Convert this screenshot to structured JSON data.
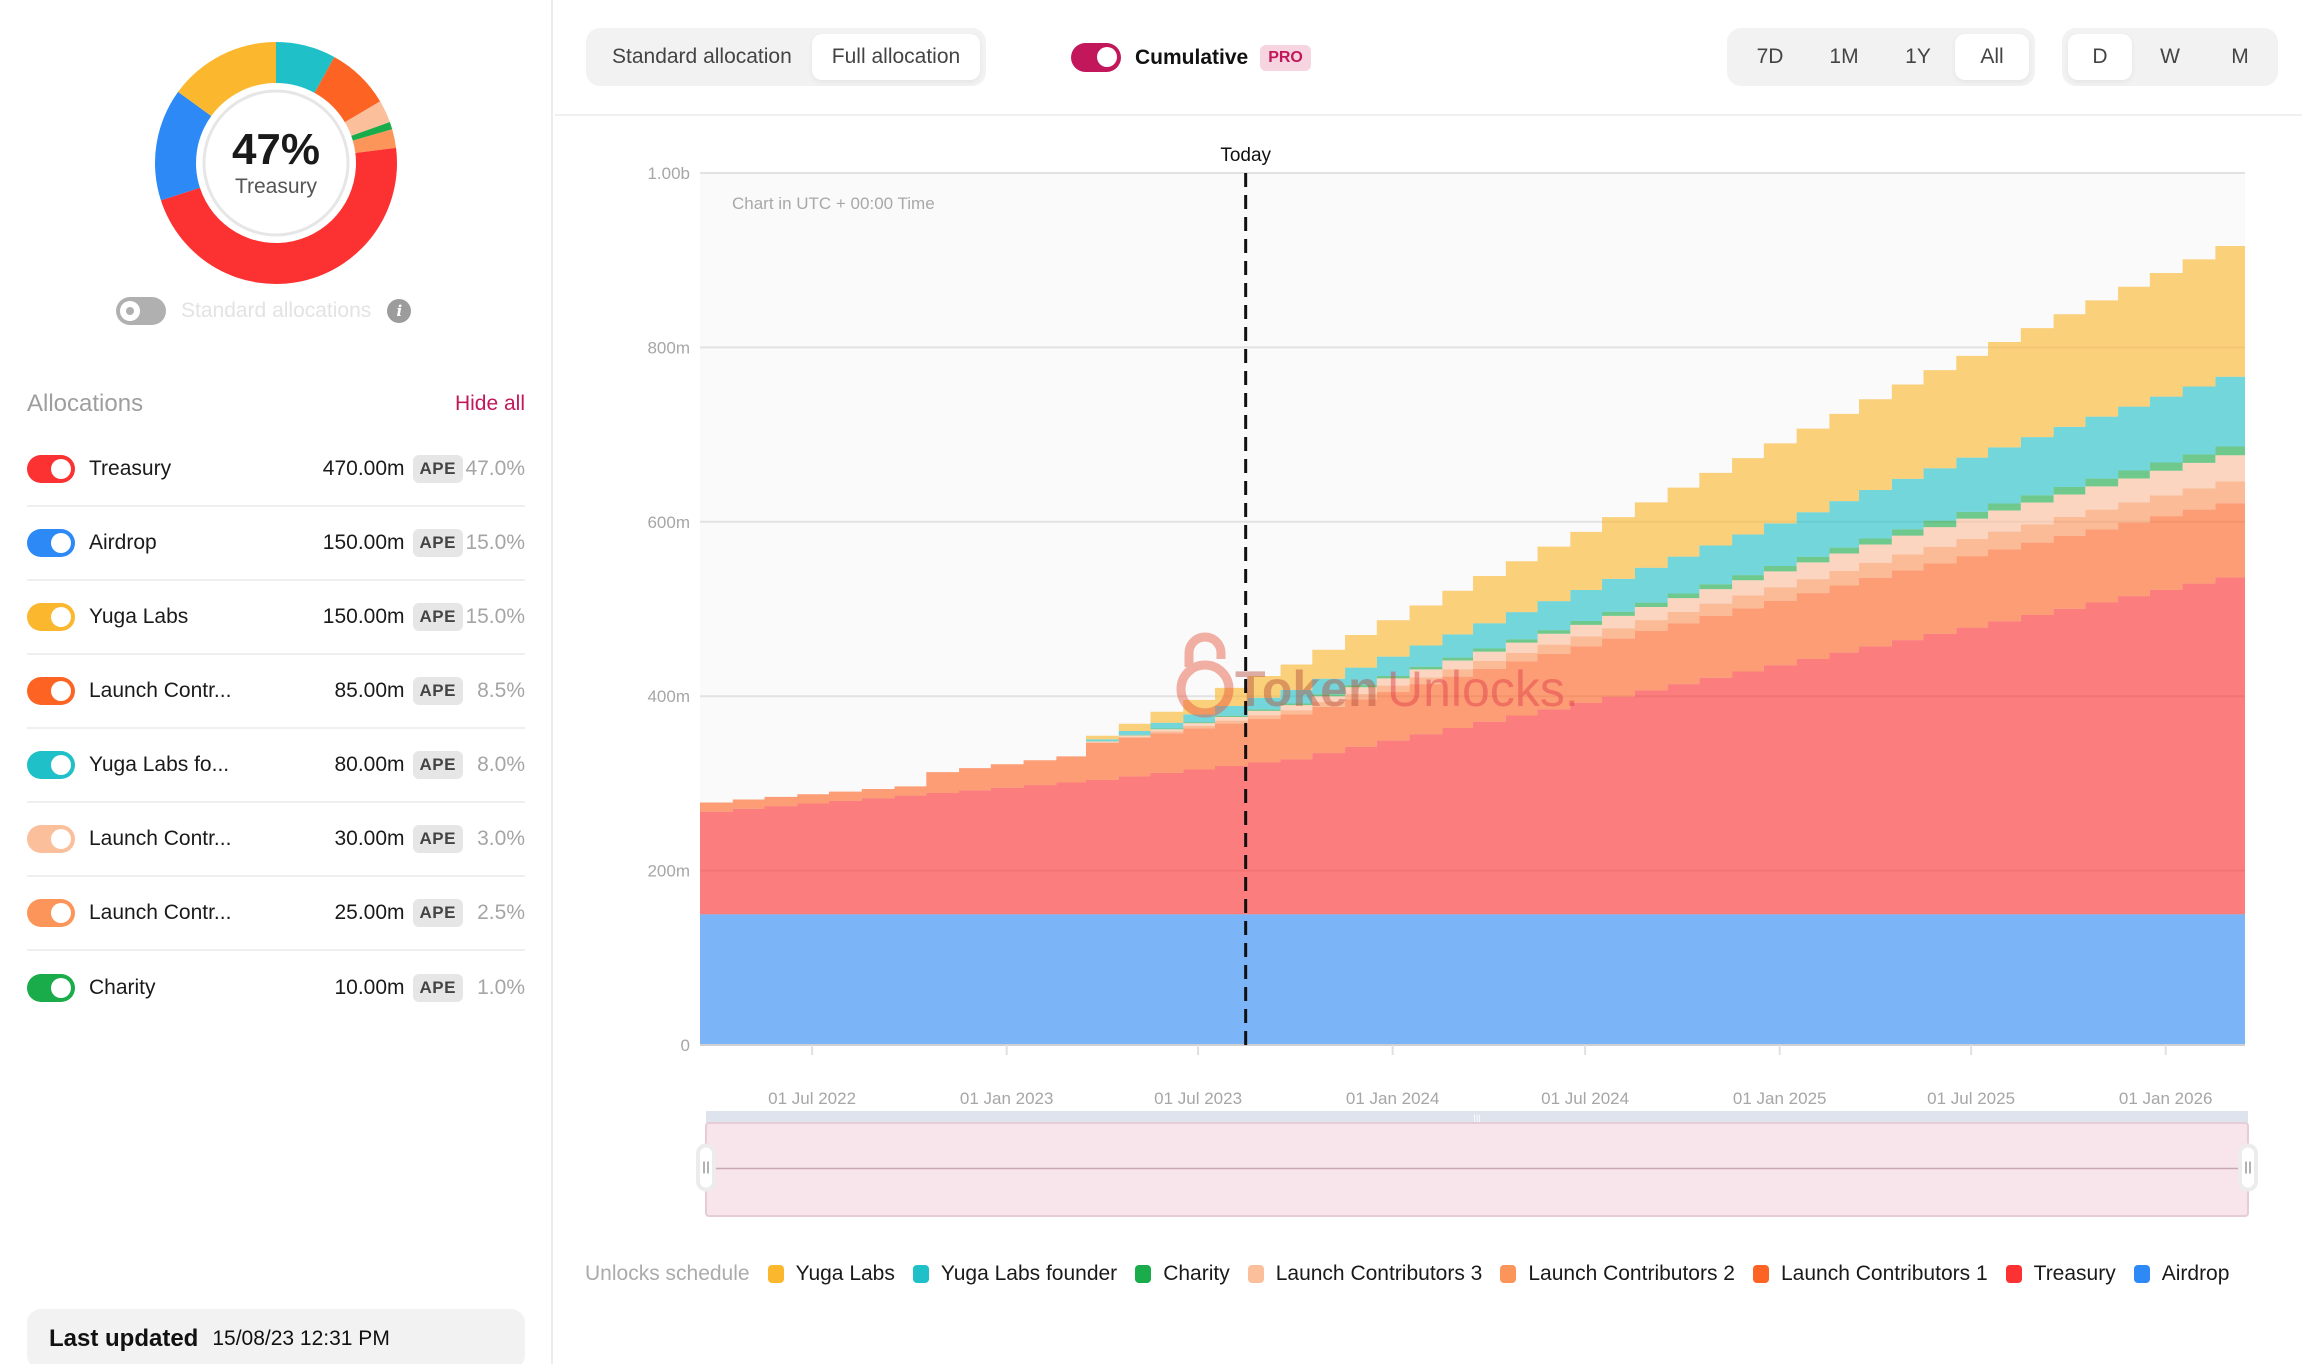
{
  "sidebar": {
    "donut": {
      "percent_label": "47%",
      "label": "Treasury"
    },
    "standard_allocations_label": "Standard allocations",
    "standard_allocations_on": false,
    "allocations_title": "Allocations",
    "hide_all_label": "Hide all",
    "allocations": [
      {
        "name": "Treasury",
        "amount": "470.00m",
        "unit": "APE",
        "pct": "47.0%",
        "color": "#fc3131",
        "value": 470
      },
      {
        "name": "Airdrop",
        "amount": "150.00m",
        "unit": "APE",
        "pct": "15.0%",
        "color": "#2d89f5",
        "value": 150
      },
      {
        "name": "Yuga Labs",
        "amount": "150.00m",
        "unit": "APE",
        "pct": "15.0%",
        "color": "#fbb72d",
        "value": 150
      },
      {
        "name": "Launch Contr...",
        "amount": "85.00m",
        "unit": "APE",
        "pct": "8.5%",
        "color": "#fd6423",
        "value": 85
      },
      {
        "name": "Yuga Labs fo...",
        "amount": "80.00m",
        "unit": "APE",
        "pct": "8.0%",
        "color": "#20c0c8",
        "value": 80
      },
      {
        "name": "Launch Contr...",
        "amount": "30.00m",
        "unit": "APE",
        "pct": "3.0%",
        "color": "#fbbf9b",
        "value": 30
      },
      {
        "name": "Launch Contr...",
        "amount": "25.00m",
        "unit": "APE",
        "pct": "2.5%",
        "color": "#fc955a",
        "value": 25
      },
      {
        "name": "Charity",
        "amount": "10.00m",
        "unit": "APE",
        "pct": "1.0%",
        "color": "#1aab4a",
        "value": 10
      }
    ],
    "last_updated_label": "Last updated",
    "last_updated_value": "15/08/23 12:31 PM"
  },
  "toolbar": {
    "allocation_options": [
      "Standard allocation",
      "Full allocation"
    ],
    "allocation_selected": "Full allocation",
    "cumulative_label": "Cumulative",
    "cumulative_on": true,
    "pro_badge": "PRO",
    "range_options": [
      "7D",
      "1M",
      "1Y",
      "All"
    ],
    "range_selected": "All",
    "granularity_options": [
      "D",
      "W",
      "M"
    ],
    "granularity_selected": "D",
    "accent_color": "#c2185b"
  },
  "watermark": {
    "brand_a": "Token",
    "brand_b": "Unlocks."
  },
  "legend": {
    "title": "Unlocks schedule",
    "items": [
      {
        "label": "Yuga Labs",
        "color": "#fbb72d"
      },
      {
        "label": "Yuga Labs founder",
        "color": "#20c0c8"
      },
      {
        "label": "Charity",
        "color": "#1aab4a"
      },
      {
        "label": "Launch Contributors 3",
        "color": "#fbbf9b"
      },
      {
        "label": "Launch Contributors 2",
        "color": "#fc955a"
      },
      {
        "label": "Launch Contributors 1",
        "color": "#fd6423"
      },
      {
        "label": "Treasury",
        "color": "#fc3131"
      },
      {
        "label": "Airdrop",
        "color": "#2d89f5"
      }
    ]
  },
  "chart_data": {
    "type": "area",
    "stacked": true,
    "step": true,
    "title": "",
    "note": "Chart in UTC + 00:00 Time",
    "today_label": "Today",
    "today_date": "2023-08-15",
    "xlabel": "",
    "ylabel": "",
    "x_start": "2022-03-17",
    "x_end": "2026-03-17",
    "ylim": [
      0,
      1000
    ],
    "y_unit": "m APE",
    "y_ticks": [
      0,
      200,
      400,
      600,
      800,
      1000
    ],
    "y_tick_labels": [
      "0",
      "200m",
      "400m",
      "600m",
      "800m",
      "1.00b"
    ],
    "x_ticks": [
      "2022-07-01",
      "2023-01-01",
      "2023-07-01",
      "2024-01-01",
      "2024-07-01",
      "2025-01-01",
      "2025-07-01",
      "2026-01-01"
    ],
    "x_tick_labels": [
      "01 Jul 2022",
      "01 Jan 2023",
      "01 Jul 2023",
      "01 Jan 2024",
      "01 Jul 2024",
      "01 Jan 2025",
      "01 Jul 2025",
      "01 Jan 2026"
    ],
    "grid": true,
    "legend_position": "bottom",
    "x_months": [
      "2022-03",
      "2022-04",
      "2022-05",
      "2022-06",
      "2022-07",
      "2022-08",
      "2022-09",
      "2022-10",
      "2022-11",
      "2022-12",
      "2023-01",
      "2023-02",
      "2023-03",
      "2023-04",
      "2023-05",
      "2023-06",
      "2023-07",
      "2023-08",
      "2023-09",
      "2023-10",
      "2023-11",
      "2023-12",
      "2024-01",
      "2024-02",
      "2024-03",
      "2024-04",
      "2024-05",
      "2024-06",
      "2024-07",
      "2024-08",
      "2024-09",
      "2024-10",
      "2024-11",
      "2024-12",
      "2025-01",
      "2025-02",
      "2025-03",
      "2025-04",
      "2025-05",
      "2025-06",
      "2025-07",
      "2025-08",
      "2025-09",
      "2025-10",
      "2025-11",
      "2025-12",
      "2026-01",
      "2026-02",
      "2026-03"
    ],
    "series": [
      {
        "name": "Airdrop",
        "color": "#2d89f5",
        "values": [
          150,
          150,
          150,
          150,
          150,
          150,
          150,
          150,
          150,
          150,
          150,
          150,
          150,
          150,
          150,
          150,
          150,
          150,
          150,
          150,
          150,
          150,
          150,
          150,
          150,
          150,
          150,
          150,
          150,
          150,
          150,
          150,
          150,
          150,
          150,
          150,
          150,
          150,
          150,
          150,
          150,
          150,
          150,
          150,
          150,
          150,
          150,
          150,
          150
        ]
      },
      {
        "name": "Treasury",
        "color": "#fc3131",
        "values": [
          117.5,
          121,
          124,
          127,
          130,
          133,
          136,
          139,
          142,
          145,
          148,
          151,
          154,
          158,
          162,
          166,
          170,
          174,
          177.5,
          184.7,
          191.9,
          199.1,
          206.3,
          213.5,
          220.7,
          227.9,
          235.1,
          242.3,
          249.5,
          256.7,
          263.9,
          271.1,
          278.3,
          285.5,
          292.7,
          299.9,
          307.1,
          314.3,
          321.5,
          328.7,
          335.9,
          343.1,
          350.3,
          357.5,
          364.7,
          371.9,
          379.1,
          386.3,
          470
        ]
      },
      {
        "name": "Launch Contributors 1",
        "color": "#fd6423",
        "values": [
          10.6,
          10.6,
          10.6,
          10.6,
          10.6,
          10.6,
          10.6,
          24,
          25.5,
          27,
          28.5,
          30,
          42.5,
          44,
          45.5,
          47,
          48.5,
          50,
          51.5,
          53,
          54.5,
          56,
          57.5,
          59,
          60.5,
          62,
          63.5,
          65,
          66.5,
          68,
          69.5,
          71,
          72.5,
          74,
          75.5,
          77,
          78.5,
          80,
          81,
          82,
          82.5,
          83,
          83.5,
          84,
          84.3,
          84.6,
          84.8,
          85,
          85
        ]
      },
      {
        "name": "Launch Contributors 2",
        "color": "#fc955a",
        "values": [
          0,
          0,
          0,
          0,
          0,
          0,
          0,
          0,
          0,
          0,
          0,
          0,
          0.7,
          1.4,
          2.1,
          2.8,
          3.5,
          4.2,
          4.9,
          5.6,
          6.3,
          7,
          7.7,
          8.4,
          9.1,
          9.8,
          10.5,
          11.2,
          11.9,
          12.6,
          13.3,
          14,
          14.7,
          15.4,
          16.1,
          16.8,
          17.5,
          18.2,
          18.9,
          19.6,
          20.3,
          21,
          21.7,
          22.4,
          23.1,
          23.8,
          24.5,
          25,
          25
        ]
      },
      {
        "name": "Launch Contributors 3",
        "color": "#fbbf9b",
        "values": [
          0,
          0,
          0,
          0,
          0,
          0,
          0,
          0,
          0,
          0,
          0,
          0,
          0.8,
          1.7,
          2.5,
          3.3,
          4.2,
          5,
          5.8,
          6.7,
          7.5,
          8.3,
          9.2,
          10,
          10.8,
          11.7,
          12.5,
          13.3,
          14.2,
          15,
          15.8,
          16.7,
          17.5,
          18.3,
          19.2,
          20,
          20.8,
          21.7,
          22.5,
          23.3,
          24.2,
          25,
          25.8,
          26.7,
          27.5,
          28.3,
          29.2,
          30,
          30
        ]
      },
      {
        "name": "Charity",
        "color": "#1aab4a",
        "values": [
          0,
          0,
          0,
          0,
          0,
          0,
          0,
          0,
          0,
          0,
          0,
          0,
          0.3,
          0.6,
          0.8,
          1.1,
          1.4,
          1.7,
          1.9,
          2.2,
          2.5,
          2.8,
          3.1,
          3.3,
          3.6,
          3.9,
          4.2,
          4.4,
          4.7,
          5,
          5.3,
          5.6,
          5.8,
          6.1,
          6.4,
          6.7,
          6.9,
          7.2,
          7.5,
          7.8,
          8.1,
          8.3,
          8.6,
          8.9,
          9.2,
          9.4,
          9.7,
          10,
          10
        ]
      },
      {
        "name": "Yuga Labs founder",
        "color": "#20c0c8",
        "values": [
          0,
          0,
          0,
          0,
          0,
          0,
          0,
          0,
          0,
          0,
          0,
          0,
          2.2,
          4.4,
          6.7,
          8.9,
          11.1,
          13.3,
          15.6,
          17.8,
          20,
          22.2,
          24.4,
          26.7,
          28.9,
          31.1,
          33.3,
          35.6,
          37.8,
          40,
          42.2,
          44.4,
          46.7,
          48.9,
          51.1,
          53.3,
          55.6,
          57.8,
          60,
          62.2,
          64.4,
          66.7,
          68.9,
          71.1,
          73.3,
          75.6,
          77.8,
          80,
          80
        ]
      },
      {
        "name": "Yuga Labs",
        "color": "#fbb72d",
        "values": [
          0,
          0,
          0,
          0,
          0,
          0,
          0,
          0,
          0,
          0,
          0,
          0,
          4.2,
          8.3,
          12.5,
          16.7,
          20.8,
          25,
          29.2,
          33.3,
          37.5,
          41.7,
          45.8,
          50,
          54.2,
          58.3,
          62.5,
          66.7,
          70.8,
          75,
          79.2,
          83.3,
          87.5,
          91.7,
          95.8,
          100,
          104.2,
          108.3,
          112.5,
          116.7,
          120.8,
          125,
          129.2,
          133.3,
          137.5,
          141.7,
          145.8,
          150,
          150
        ]
      }
    ]
  }
}
